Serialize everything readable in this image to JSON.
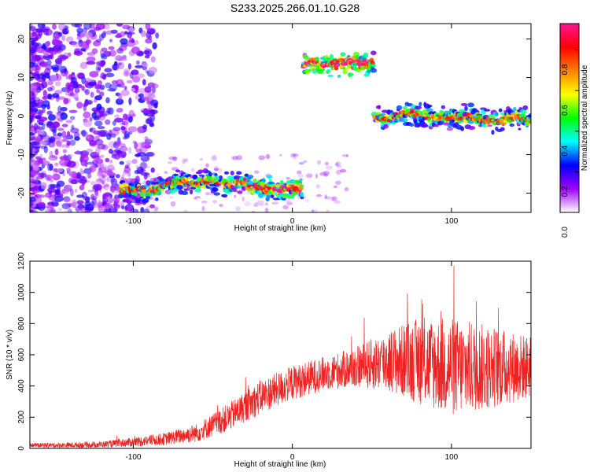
{
  "title": "S233.2025.266.01.10.G28",
  "chart_data": [
    {
      "type": "heatmap",
      "xlabel": "Height of straight line (km)",
      "ylabel": "Frequency (Hz)",
      "xlim": [
        -165,
        150
      ],
      "ylim": [
        -25,
        24
      ],
      "xticks": [
        -100,
        0,
        100
      ],
      "yticks": [
        -20,
        -10,
        0,
        10,
        20
      ],
      "colorbar": {
        "label": "Normalized spectral amplitude",
        "range": [
          0,
          0.93
        ],
        "ticks": [
          0,
          0.2,
          0.4,
          0.6,
          0.8
        ],
        "colors": [
          "#ffffff",
          "#a000ff",
          "#0000ff",
          "#00ffff",
          "#00ff00",
          "#ffff00",
          "#ff8000",
          "#ff0000",
          "#ff1493"
        ]
      },
      "ridge": [
        {
          "x": -108,
          "y": -19
        },
        {
          "x": -100,
          "y": -19
        },
        {
          "x": -90,
          "y": -19.5
        },
        {
          "x": -80,
          "y": -18
        },
        {
          "x": -70,
          "y": -17
        },
        {
          "x": -60,
          "y": -17.5
        },
        {
          "x": -50,
          "y": -17
        },
        {
          "x": -40,
          "y": -18
        },
        {
          "x": -30,
          "y": -17
        },
        {
          "x": -25,
          "y": -18.5
        },
        {
          "x": -20,
          "y": -18.5
        },
        {
          "x": -10,
          "y": -19
        },
        {
          "x": 0,
          "y": -19
        },
        {
          "x": 5,
          "y": -18.5
        },
        {
          "x": 8,
          "y": 13.5
        },
        {
          "x": 20,
          "y": 13.5
        },
        {
          "x": 30,
          "y": 13.5
        },
        {
          "x": 40,
          "y": 14
        },
        {
          "x": 50,
          "y": 13.5
        },
        {
          "x": 52,
          "y": -0.5
        },
        {
          "x": 60,
          "y": -1
        },
        {
          "x": 70,
          "y": 1
        },
        {
          "x": 80,
          "y": 0.5
        },
        {
          "x": 90,
          "y": -0.5
        },
        {
          "x": 100,
          "y": -0.5
        },
        {
          "x": 110,
          "y": 0
        },
        {
          "x": 120,
          "y": -1
        },
        {
          "x": 130,
          "y": -1.5
        },
        {
          "x": 140,
          "y": 0
        },
        {
          "x": 150,
          "y": -1
        }
      ]
    },
    {
      "type": "line",
      "xlabel": "Height of straight line (km)",
      "ylabel": "SNR (10 * v/v)",
      "xlim": [
        -165,
        150
      ],
      "ylim": [
        0,
        1200
      ],
      "xticks": [
        -100,
        0,
        100
      ],
      "yticks": [
        0,
        200,
        400,
        600,
        800,
        1000,
        1200
      ],
      "color": "#ee2222",
      "envelope": [
        {
          "x": -165,
          "y": 20,
          "amp": 15
        },
        {
          "x": -140,
          "y": 20,
          "amp": 18
        },
        {
          "x": -120,
          "y": 25,
          "amp": 20
        },
        {
          "x": -100,
          "y": 40,
          "amp": 30
        },
        {
          "x": -80,
          "y": 60,
          "amp": 40
        },
        {
          "x": -60,
          "y": 100,
          "amp": 60
        },
        {
          "x": -40,
          "y": 200,
          "amp": 90
        },
        {
          "x": -20,
          "y": 330,
          "amp": 110
        },
        {
          "x": 0,
          "y": 420,
          "amp": 110
        },
        {
          "x": 20,
          "y": 480,
          "amp": 110
        },
        {
          "x": 40,
          "y": 520,
          "amp": 130
        },
        {
          "x": 60,
          "y": 560,
          "amp": 200
        },
        {
          "x": 80,
          "y": 560,
          "amp": 280
        },
        {
          "x": 100,
          "y": 520,
          "amp": 320
        },
        {
          "x": 120,
          "y": 520,
          "amp": 280
        },
        {
          "x": 150,
          "y": 520,
          "amp": 200
        }
      ]
    }
  ]
}
